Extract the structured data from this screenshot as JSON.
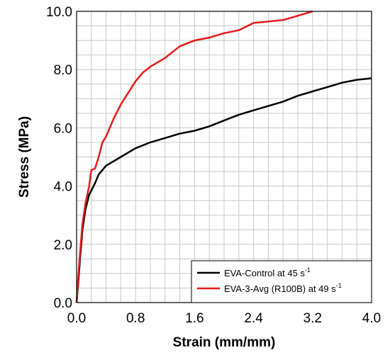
{
  "chart_data": {
    "type": "line",
    "xlabel": "Strain (mm/mm)",
    "ylabel": "Stress (MPa)",
    "xlim": [
      0,
      4.0
    ],
    "ylim": [
      0,
      10.0
    ],
    "x_ticks": [
      "0.0",
      "0.8",
      "1.6",
      "2.4",
      "3.2",
      "4.0"
    ],
    "y_ticks": [
      "0.0",
      "2.0",
      "4.0",
      "6.0",
      "8.0",
      "10.0"
    ],
    "grid": true,
    "legend_position": "bottom-right",
    "series": [
      {
        "name": "EVA-Control at 45",
        "name_unit_base": "s",
        "name_unit_exp": "-1",
        "color": "#000000",
        "points": [
          [
            0,
            0
          ],
          [
            0.02,
            0.6
          ],
          [
            0.05,
            1.6
          ],
          [
            0.08,
            2.5
          ],
          [
            0.12,
            3.2
          ],
          [
            0.17,
            3.7
          ],
          [
            0.25,
            4.1
          ],
          [
            0.3,
            4.4
          ],
          [
            0.4,
            4.7
          ],
          [
            0.5,
            4.85
          ],
          [
            0.6,
            5.0
          ],
          [
            0.8,
            5.3
          ],
          [
            1.0,
            5.5
          ],
          [
            1.2,
            5.65
          ],
          [
            1.4,
            5.8
          ],
          [
            1.6,
            5.9
          ],
          [
            1.8,
            6.05
          ],
          [
            2.0,
            6.25
          ],
          [
            2.2,
            6.45
          ],
          [
            2.4,
            6.6
          ],
          [
            2.6,
            6.75
          ],
          [
            2.8,
            6.9
          ],
          [
            3.0,
            7.1
          ],
          [
            3.2,
            7.25
          ],
          [
            3.4,
            7.4
          ],
          [
            3.6,
            7.55
          ],
          [
            3.8,
            7.65
          ],
          [
            4.0,
            7.7
          ]
        ]
      },
      {
        "name": "EVA-3-Avg (R100B) at 49",
        "name_unit_base": "s",
        "name_unit_exp": "-1",
        "color": "#e31a1c",
        "points": [
          [
            0,
            0
          ],
          [
            0.02,
            0.8
          ],
          [
            0.05,
            1.8
          ],
          [
            0.08,
            2.7
          ],
          [
            0.12,
            3.4
          ],
          [
            0.17,
            4.0
          ],
          [
            0.2,
            4.55
          ],
          [
            0.25,
            4.6
          ],
          [
            0.3,
            5.0
          ],
          [
            0.35,
            5.5
          ],
          [
            0.4,
            5.7
          ],
          [
            0.5,
            6.3
          ],
          [
            0.6,
            6.8
          ],
          [
            0.7,
            7.2
          ],
          [
            0.8,
            7.6
          ],
          [
            0.9,
            7.9
          ],
          [
            1.0,
            8.1
          ],
          [
            1.2,
            8.4
          ],
          [
            1.4,
            8.8
          ],
          [
            1.6,
            9.0
          ],
          [
            1.8,
            9.1
          ],
          [
            2.0,
            9.25
          ],
          [
            2.2,
            9.35
          ],
          [
            2.4,
            9.6
          ],
          [
            2.6,
            9.65
          ],
          [
            2.8,
            9.7
          ],
          [
            3.0,
            9.85
          ],
          [
            3.2,
            10.0
          ]
        ]
      }
    ]
  }
}
